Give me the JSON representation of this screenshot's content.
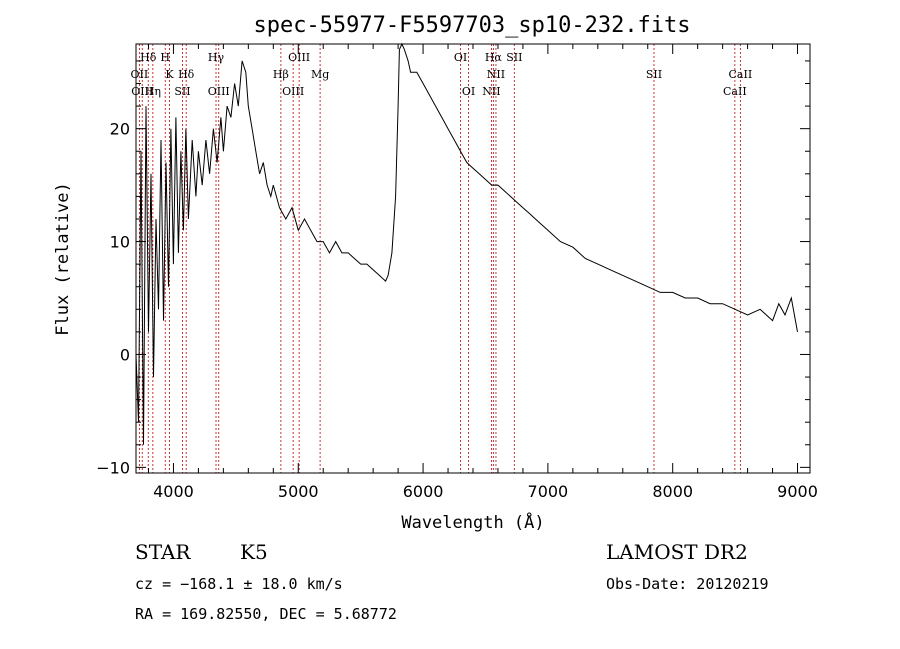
{
  "chart_data": {
    "type": "line",
    "title": "spec-55977-F5597703_sp10-232.fits",
    "xlabel": "Wavelength (Å)",
    "ylabel": "Flux (relative)",
    "xlim": [
      3700,
      9100
    ],
    "ylim": [
      -10.5,
      27.5
    ],
    "x_ticks": [
      4000,
      5000,
      6000,
      7000,
      8000,
      9000
    ],
    "y_ticks": [
      -10,
      0,
      10,
      20
    ],
    "grid": false,
    "legend": "none",
    "series": [
      {
        "x": [
          3700,
          3720,
          3740,
          3760,
          3780,
          3800,
          3820,
          3840,
          3860,
          3880,
          3900,
          3920,
          3940,
          3960,
          3980,
          4000,
          4020,
          4040,
          4060,
          4080,
          4100,
          4120,
          4150,
          4180,
          4200,
          4230,
          4260,
          4290,
          4320,
          4350,
          4380,
          4400,
          4430,
          4460,
          4490,
          4520,
          4550,
          4580,
          4600,
          4630,
          4660,
          4690,
          4720,
          4750,
          4780,
          4800,
          4850,
          4900,
          4950,
          5000,
          5050,
          5100,
          5150,
          5200,
          5250,
          5300,
          5350,
          5400,
          5450,
          5500,
          5550,
          5600,
          5650,
          5700,
          5720,
          5750,
          5780,
          5800,
          5810,
          5830,
          5850,
          5880,
          5900,
          5950,
          6000,
          6050,
          6100,
          6150,
          6200,
          6250,
          6300,
          6350,
          6400,
          6450,
          6500,
          6550,
          6600,
          6650,
          6700,
          6750,
          6800,
          6850,
          6900,
          6950,
          7000,
          7100,
          7200,
          7300,
          7400,
          7500,
          7600,
          7700,
          7800,
          7900,
          8000,
          8100,
          8200,
          8300,
          8400,
          8500,
          8600,
          8700,
          8800,
          8850,
          8900,
          8950,
          9000
        ],
        "y": [
          0,
          -6,
          18,
          -8,
          22,
          2,
          16,
          -2,
          12,
          4,
          19,
          3,
          17,
          6,
          20,
          8,
          21,
          9,
          18,
          11,
          20,
          12,
          19,
          14,
          18,
          15,
          19,
          16,
          20,
          17,
          21,
          18,
          22,
          21,
          24,
          22,
          26,
          25,
          22,
          20,
          18,
          16,
          17,
          15,
          14,
          15,
          13,
          12,
          13,
          11,
          12,
          11,
          10,
          10,
          9,
          10,
          9,
          9,
          8.5,
          8,
          8,
          7.5,
          7,
          6.5,
          7,
          9,
          14,
          22,
          27,
          28,
          27,
          26,
          25,
          25,
          24,
          23,
          22,
          21,
          20,
          19,
          18,
          17,
          16.5,
          16,
          15.5,
          15,
          15,
          14.5,
          14,
          13.5,
          13,
          12.5,
          12,
          11.5,
          11,
          10,
          9.5,
          8.5,
          8,
          7.5,
          7,
          6.5,
          6,
          5.5,
          5.5,
          5,
          5,
          4.5,
          4.5,
          4,
          3.5,
          4,
          3,
          4.5,
          3.5,
          5,
          2
        ]
      }
    ],
    "lines": {
      "top": [
        {
          "w": 3798,
          "label": "Hδ",
          "row": 0
        },
        {
          "w": 3934,
          "label": "H",
          "row": 0
        },
        {
          "w": 4341,
          "label": "Hγ",
          "row": 0
        },
        {
          "w": 5007,
          "label": "OIII",
          "row": 0
        },
        {
          "w": 6300,
          "label": "OI",
          "row": 0
        },
        {
          "w": 6563,
          "label": "Hα",
          "row": 0
        },
        {
          "w": 6731,
          "label": "SII",
          "row": 0
        },
        {
          "w": 3727,
          "label": "OII",
          "row": 1
        },
        {
          "w": 3968,
          "label": "K",
          "row": 1
        },
        {
          "w": 4102,
          "label": "Hδ",
          "row": 1
        },
        {
          "w": 4861,
          "label": "Hβ",
          "row": 1
        },
        {
          "w": 5175,
          "label": "Mg",
          "row": 1
        },
        {
          "w": 6584,
          "label": "NII",
          "row": 1
        },
        {
          "w": 7850,
          "label": "SII",
          "row": 1
        },
        {
          "w": 8542,
          "label": "CaII",
          "row": 1
        },
        {
          "w": 3750,
          "label": "OIII",
          "row": 2
        },
        {
          "w": 3835,
          "label": "Hη",
          "row": 2
        },
        {
          "w": 4072,
          "label": "SII",
          "row": 2
        },
        {
          "w": 4363,
          "label": "OIII",
          "row": 2
        },
        {
          "w": 4959,
          "label": "OIII",
          "row": 2
        },
        {
          "w": 6364,
          "label": "OI",
          "row": 2
        },
        {
          "w": 6548,
          "label": "NII",
          "row": 2
        },
        {
          "w": 8498,
          "label": "CaII",
          "row": 2
        }
      ],
      "markers": [
        3727,
        3750,
        3798,
        3835,
        3934,
        3968,
        4072,
        4102,
        4341,
        4363,
        4861,
        4959,
        5007,
        5175,
        6300,
        6364,
        6548,
        6563,
        6584,
        6731,
        7850,
        8498,
        8542
      ]
    },
    "line_color": "#000000",
    "marker_color": "#c00000"
  },
  "info": {
    "object_class": "STAR",
    "subclass": "K5",
    "survey": "LAMOST DR2",
    "velocity": "cz = −168.1 ± 18.0 km/s",
    "obs_date": "Obs-Date: 20120219",
    "coords": "RA = 169.82550, DEC =   5.68772"
  }
}
